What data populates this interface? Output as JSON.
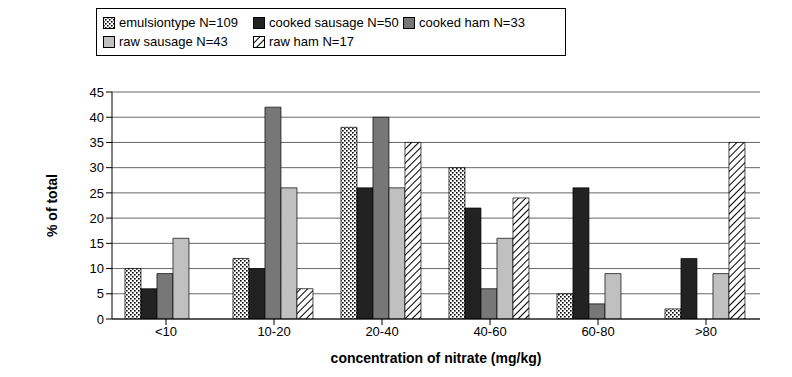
{
  "chart_data": {
    "type": "bar",
    "x_label": "concentration of nitrate (mg/kg)",
    "y_label": "% of total",
    "categories": [
      "<10",
      "10-20",
      "20-40",
      "40-60",
      "60-80",
      ">80"
    ],
    "series": [
      {
        "name": "emulsiontype N=109",
        "color": "#000000",
        "values": [
          10,
          12,
          38,
          30,
          5,
          2
        ]
      },
      {
        "name": "cooked sausage N=50",
        "color": "#222222",
        "values": [
          6,
          10,
          26,
          22,
          26,
          12
        ]
      },
      {
        "name": "cooked ham N=33",
        "color": "#777777",
        "values": [
          9,
          42,
          40,
          6,
          3,
          0
        ]
      },
      {
        "name": "raw sausage N=43",
        "color": "#c0c0c0",
        "values": [
          16,
          26,
          26,
          16,
          9,
          9
        ]
      },
      {
        "name": "raw ham N=17",
        "color": "#000000",
        "values": [
          0,
          6,
          35,
          24,
          0,
          35
        ]
      }
    ],
    "ylim": [
      0,
      45
    ],
    "yticks": [
      0,
      5,
      10,
      15,
      20,
      25,
      30,
      35,
      40,
      45
    ],
    "grid": true,
    "legend": "top"
  }
}
